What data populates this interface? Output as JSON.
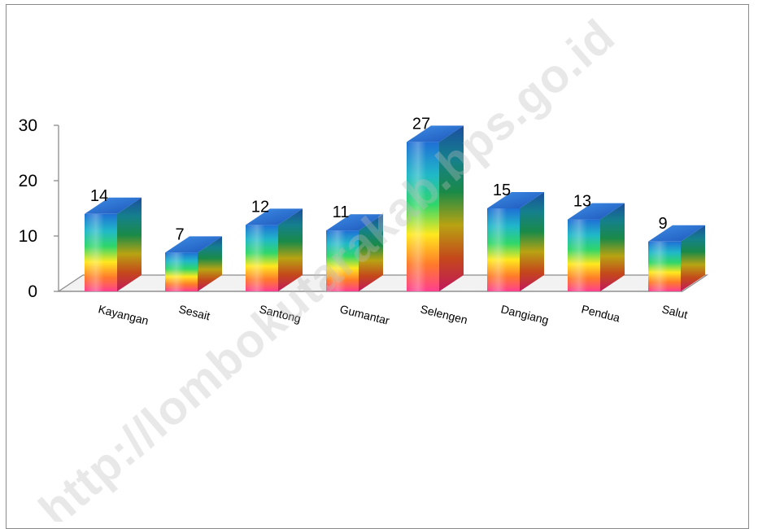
{
  "chart_data": {
    "type": "bar",
    "categories": [
      "Kayangan",
      "Sesait",
      "Santong",
      "Gumantar",
      "Selengen",
      "Dangiang",
      "Pendua",
      "Salut"
    ],
    "values": [
      14,
      7,
      12,
      11,
      27,
      15,
      13,
      9
    ],
    "y_ticks": [
      "0",
      "10",
      "20",
      "30"
    ],
    "ylim": [
      0,
      30
    ],
    "grid": false,
    "legend": "none",
    "style": "3d-rainbow-gradient"
  },
  "watermark": "http://lombokutarakab.bps.go.id"
}
